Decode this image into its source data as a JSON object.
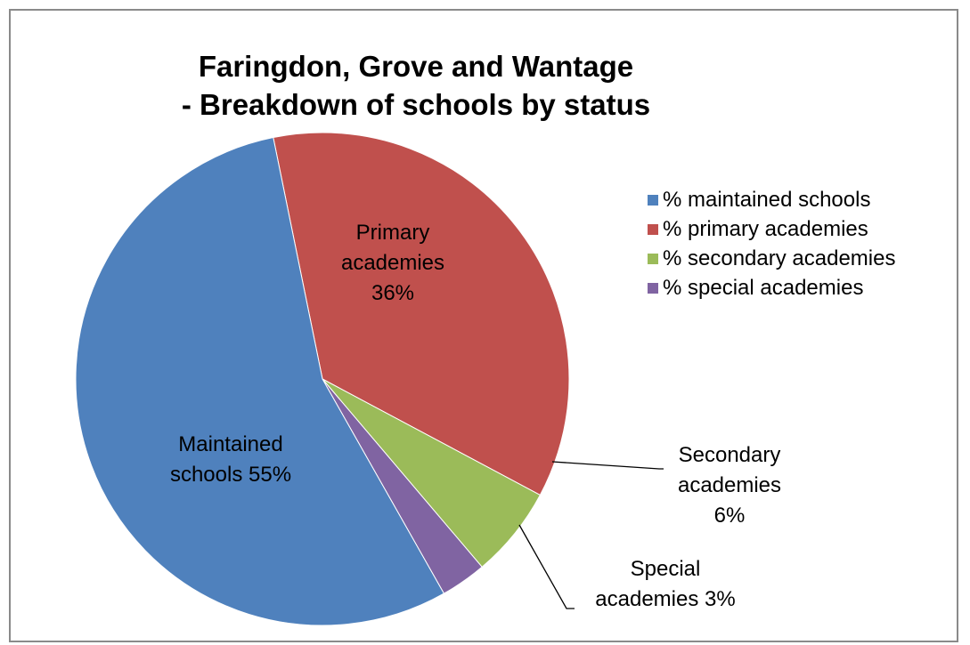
{
  "chart_data": {
    "type": "pie",
    "title_lines": [
      "Faringdon, Grove and Wantage",
      "- Breakdown of schools by status"
    ],
    "slices": [
      {
        "legend": "% maintained schools",
        "label_lines": [
          "Maintained",
          "schools 55%"
        ],
        "value": 55,
        "color": "#4F81BD"
      },
      {
        "legend": "% primary academies",
        "label_lines": [
          "Primary",
          "academies",
          "36%"
        ],
        "value": 36,
        "color": "#C0504D"
      },
      {
        "legend": "% secondary academies",
        "label_lines": [
          "Secondary",
          "academies",
          "6%"
        ],
        "value": 6,
        "color": "#9BBB59"
      },
      {
        "legend": "% special academies",
        "label_lines": [
          "Special",
          "academies 3%"
        ],
        "value": 3,
        "color": "#8064A2"
      }
    ],
    "legend_position": "right"
  }
}
